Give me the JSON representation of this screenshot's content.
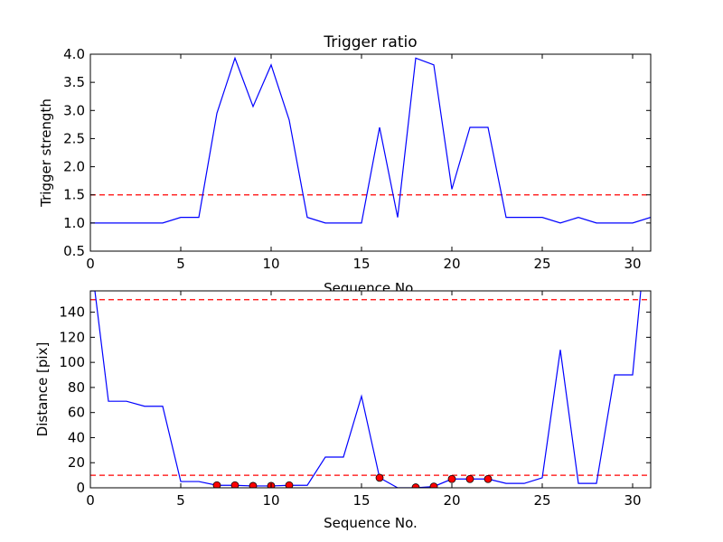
{
  "colors": {
    "line": "#0000ff",
    "threshold": "#ff0000",
    "marker_fill": "#ff0000",
    "marker_edge": "#000000",
    "axes": "#000000",
    "background": "#ffffff"
  },
  "chart_data": [
    {
      "type": "line",
      "title": "Trigger ratio",
      "xlabel": "Sequence No.",
      "ylabel": "Trigger strength",
      "xlim": [
        0,
        31
      ],
      "ylim": [
        0.5,
        4.0
      ],
      "xticks": [
        0,
        5,
        10,
        15,
        20,
        25,
        30
      ],
      "yticks": [
        0.5,
        1.0,
        1.5,
        2.0,
        2.5,
        3.0,
        3.5,
        4.0
      ],
      "xtick_labels": [
        "0",
        "5",
        "10",
        "15",
        "20",
        "25",
        "30"
      ],
      "ytick_labels": [
        "0.5",
        "1.0",
        "1.5",
        "2.0",
        "2.5",
        "3.0",
        "3.5",
        "4.0"
      ],
      "grid": false,
      "series": [
        {
          "x": [
            0,
            1,
            2,
            3,
            4,
            5,
            6,
            7,
            8,
            9,
            10,
            11,
            12,
            13,
            14,
            15,
            16,
            17,
            18,
            19,
            20,
            21,
            22,
            23,
            24,
            25,
            26,
            27,
            28,
            29,
            30,
            31
          ],
          "y": [
            1.0,
            1.0,
            1.0,
            1.0,
            1.0,
            1.1,
            1.1,
            2.95,
            3.93,
            3.07,
            3.81,
            2.83,
            1.1,
            1.0,
            1.0,
            1.0,
            2.7,
            1.1,
            3.93,
            3.81,
            1.6,
            2.7,
            2.7,
            1.1,
            1.1,
            1.1,
            1.0,
            1.1,
            1.0,
            1.0,
            1.0,
            1.1
          ],
          "style": "solid",
          "color": "#0000ff"
        }
      ],
      "hlines": [
        1.5
      ]
    },
    {
      "type": "line",
      "title": "",
      "xlabel": "Sequence No.",
      "ylabel": "Distance [pix]",
      "xlim": [
        0,
        31
      ],
      "ylim": [
        0,
        157
      ],
      "xticks": [
        0,
        5,
        10,
        15,
        20,
        25,
        30
      ],
      "yticks": [
        0,
        20,
        40,
        60,
        80,
        100,
        120,
        140
      ],
      "xtick_labels": [
        "0",
        "5",
        "10",
        "15",
        "20",
        "25",
        "30"
      ],
      "ytick_labels": [
        "0",
        "20",
        "40",
        "60",
        "80",
        "100",
        "120",
        "140"
      ],
      "grid": false,
      "series": [
        {
          "x": [
            0,
            0.25,
            1,
            2,
            3,
            4,
            5,
            6,
            7,
            8,
            9,
            10,
            11,
            12,
            13,
            14,
            15,
            16,
            17,
            18,
            19,
            20,
            21,
            22,
            23,
            24,
            25,
            26,
            27,
            28,
            29,
            30,
            30.45
          ],
          "y": [
            157,
            157,
            69,
            69,
            65,
            65,
            5,
            5,
            2,
            2,
            1.5,
            1.5,
            2,
            2,
            24.5,
            24.5,
            73,
            8,
            0,
            0,
            1,
            7,
            7,
            7,
            3.5,
            3.5,
            8,
            110,
            3.5,
            3.5,
            90,
            90,
            157
          ],
          "style": "solid",
          "color": "#0000ff"
        },
        {
          "x": [
            7,
            8,
            9,
            10,
            11,
            16,
            18,
            19,
            20,
            21,
            22
          ],
          "y": [
            2,
            2,
            1.5,
            1.5,
            2,
            8,
            0.3,
            1,
            7,
            7,
            7
          ],
          "style": "markers",
          "color": "#ff0000"
        }
      ],
      "hlines": [
        150,
        10
      ]
    }
  ]
}
